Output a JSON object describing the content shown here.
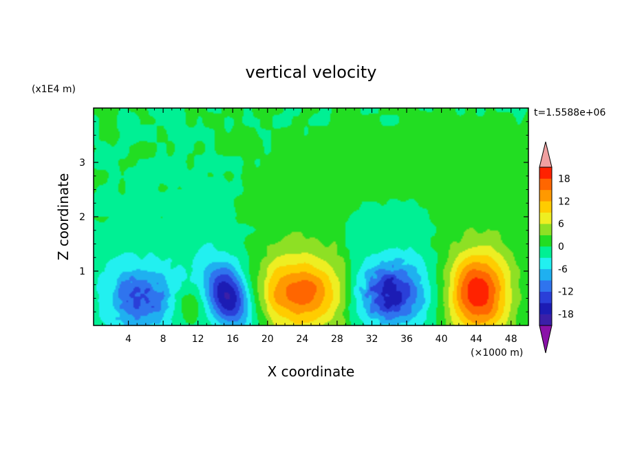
{
  "chart_data": {
    "type": "heatmap",
    "title": "vertical velocity",
    "xlabel": "X coordinate",
    "ylabel": "Z coordinate",
    "x_unit": "(×1000 m)",
    "y_unit": "(x1E4 m)",
    "time_label": "t=1.5588e+06",
    "xlim": [
      0,
      50
    ],
    "ylim": [
      0,
      4
    ],
    "x_ticks": [
      "4",
      "8",
      "12",
      "16",
      "20",
      "24",
      "28",
      "32",
      "36",
      "40",
      "44",
      "48"
    ],
    "y_ticks": [
      "1",
      "2",
      "3"
    ],
    "colorbar": {
      "tick_labels": [
        "18",
        "12",
        "6",
        "0",
        "-6",
        "-12",
        "-18"
      ],
      "levels": [
        -21,
        -18,
        -15,
        -12,
        -9,
        -6,
        -3,
        0,
        3,
        6,
        9,
        12,
        15,
        18,
        21
      ],
      "colors": [
        "#7a1fa8",
        "#3b1fa8",
        "#1c1cb4",
        "#2a3fd8",
        "#2f74ee",
        "#1fb0f0",
        "#22f0f0",
        "#00f094",
        "#22dd22",
        "#8ee024",
        "#eeee22",
        "#ffcc00",
        "#ff9900",
        "#ff6600",
        "#ff2200",
        "#e61212"
      ],
      "under_color": "#8a12a8",
      "over_color": "#f0a0a0"
    },
    "features": [
      {
        "x": 5.5,
        "z": 0.5,
        "amp": -9,
        "sx": 2.6,
        "sz": 0.36,
        "kind": "noisy"
      },
      {
        "x": 15.5,
        "z": 0.55,
        "amp": -16,
        "sx": 1.7,
        "sz": 0.38,
        "kind": "tilted"
      },
      {
        "x": 11.0,
        "z": 0.38,
        "amp": 5,
        "sx": 1.2,
        "sz": 0.2,
        "kind": "plain"
      },
      {
        "x": 24.0,
        "z": 0.6,
        "amp": 13,
        "sx": 3.6,
        "sz": 0.42,
        "kind": "plain"
      },
      {
        "x": 34.0,
        "z": 0.6,
        "amp": -13,
        "sx": 2.8,
        "sz": 0.38,
        "kind": "noisy"
      },
      {
        "x": 44.2,
        "z": 0.6,
        "amp": 18,
        "sx": 2.3,
        "sz": 0.5,
        "kind": "plain"
      }
    ]
  }
}
